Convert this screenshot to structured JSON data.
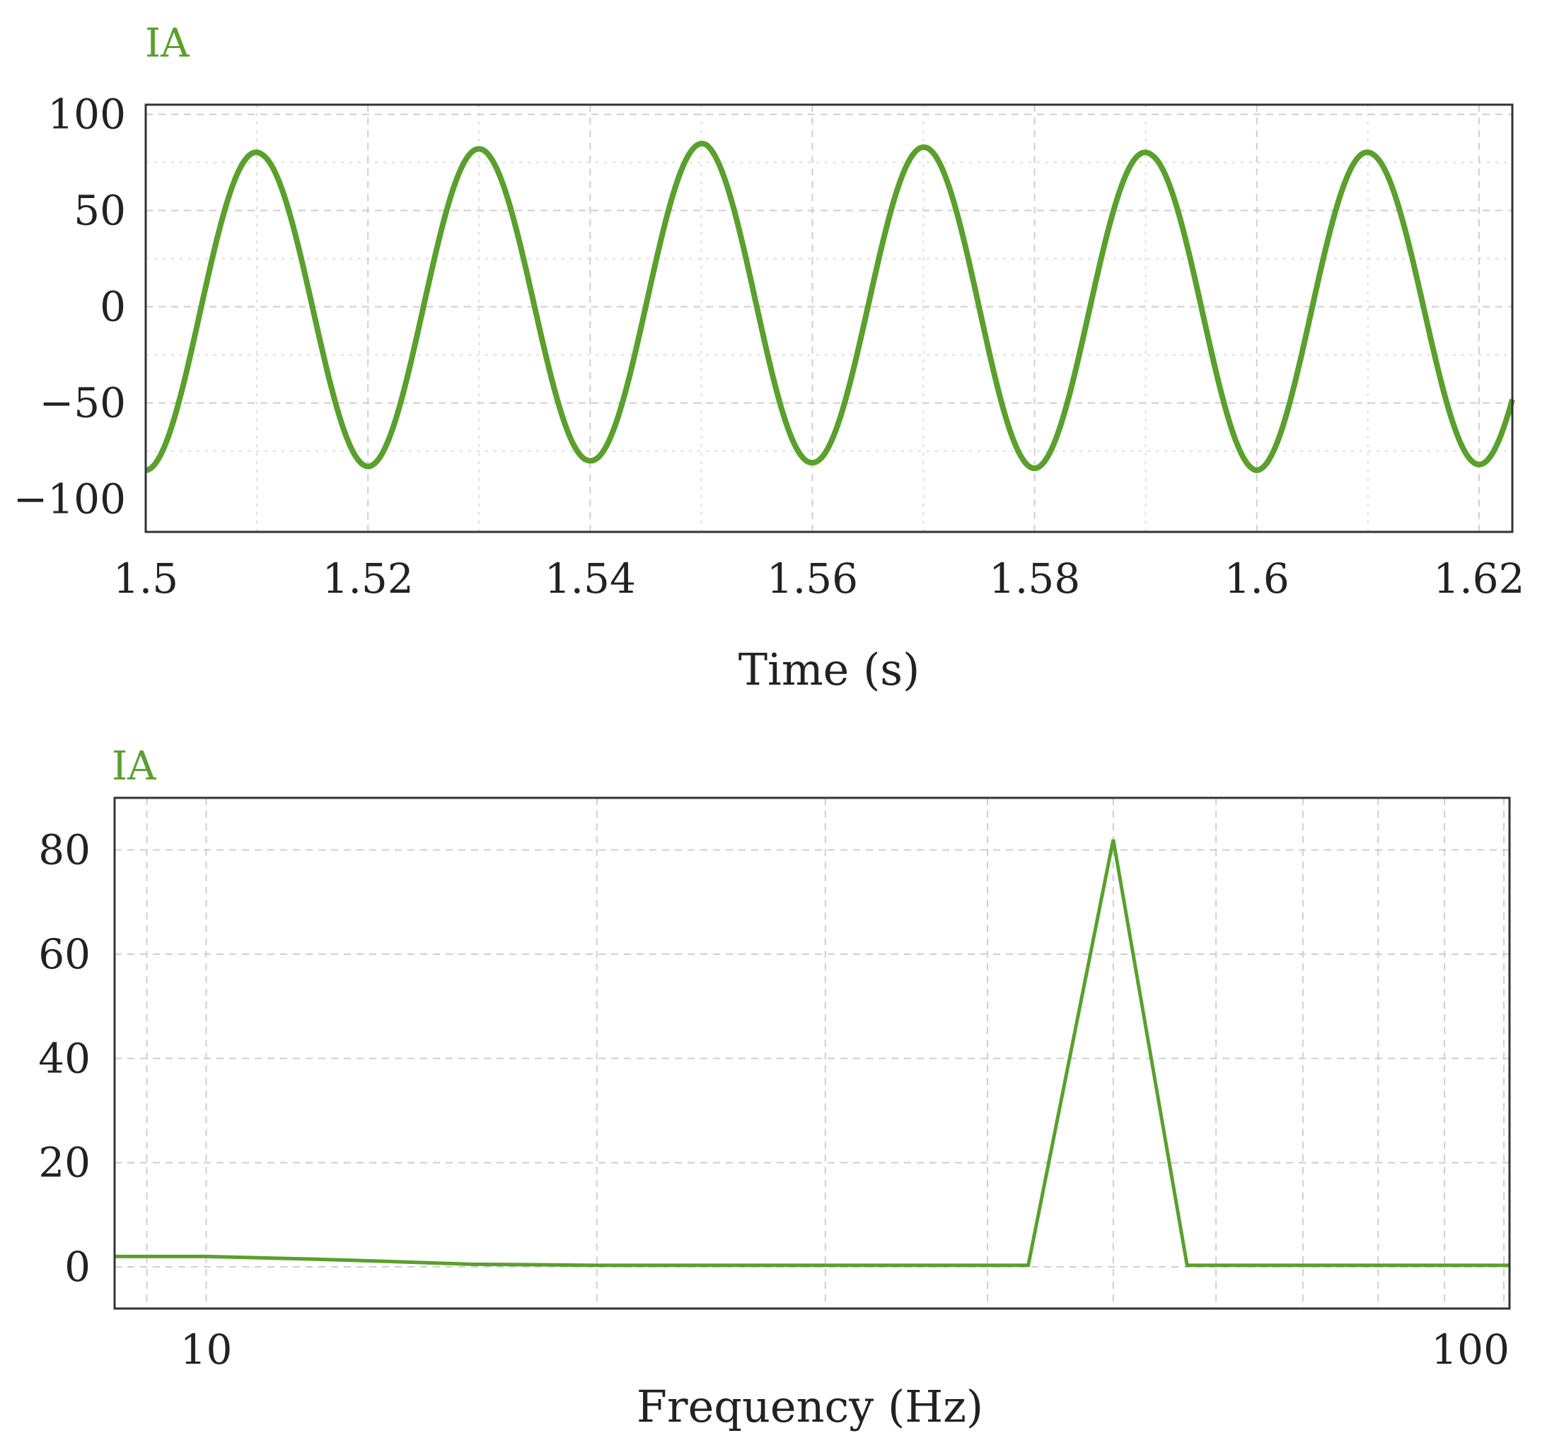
{
  "colors": {
    "series": "#5aa02c",
    "frame": "#333333",
    "grid": "#cfcfcf"
  },
  "chart_data": [
    {
      "type": "line",
      "title": "IA",
      "xlabel": "Time (s)",
      "ylabel": "",
      "xlim": [
        1.5,
        1.623
      ],
      "ylim": [
        -117,
        105
      ],
      "xticks": [
        1.5,
        1.52,
        1.54,
        1.56,
        1.58,
        1.6,
        1.62
      ],
      "xtick_labels": [
        "1.5",
        "1.52",
        "1.54",
        "1.56",
        "1.58",
        "1.6",
        "1.62"
      ],
      "yticks": [
        100,
        50,
        0,
        -50,
        -100
      ],
      "ytick_labels": [
        "100",
        "50",
        "0",
        "−50",
        "−100"
      ],
      "grid": true,
      "series": [
        {
          "frequency_hz": 50,
          "peaks": [
            {
              "x": 1.5105,
              "y": 80
            },
            {
              "x": 1.5305,
              "y": 82
            },
            {
              "x": 1.5505,
              "y": 85
            },
            {
              "x": 1.5705,
              "y": 83
            },
            {
              "x": 1.5905,
              "y": 80
            },
            {
              "x": 1.6105,
              "y": 80
            }
          ],
          "troughs": [
            {
              "x": 1.5,
              "y": -85
            },
            {
              "x": 1.52,
              "y": -83
            },
            {
              "x": 1.54,
              "y": -80
            },
            {
              "x": 1.56,
              "y": -81
            },
            {
              "x": 1.58,
              "y": -84
            },
            {
              "x": 1.6,
              "y": -85
            },
            {
              "x": 1.62,
              "y": -82
            }
          ]
        }
      ]
    },
    {
      "type": "line",
      "title": "IA",
      "xlabel": "Frequency (Hz)",
      "ylabel": "",
      "xscale": "log",
      "xlim": [
        8.5,
        101
      ],
      "ylim": [
        -8,
        90
      ],
      "xticks": [
        10,
        100
      ],
      "xtick_labels": [
        "10",
        "100"
      ],
      "yticks": [
        0,
        20,
        40,
        60,
        80
      ],
      "ytick_labels": [
        "0",
        "20",
        "40",
        "60",
        "80"
      ],
      "grid": true,
      "series": [
        {
          "x": [
            8.5,
            10,
            12,
            14,
            16,
            20,
            25,
            30,
            35,
            40,
            43,
            50,
            57,
            60,
            70,
            80,
            101
          ],
          "y": [
            2,
            2,
            1.5,
            1,
            0.5,
            0.3,
            0.3,
            0.3,
            0.3,
            0.3,
            0.3,
            82,
            0.3,
            0.3,
            0.3,
            0.3,
            0.3
          ]
        }
      ]
    }
  ]
}
